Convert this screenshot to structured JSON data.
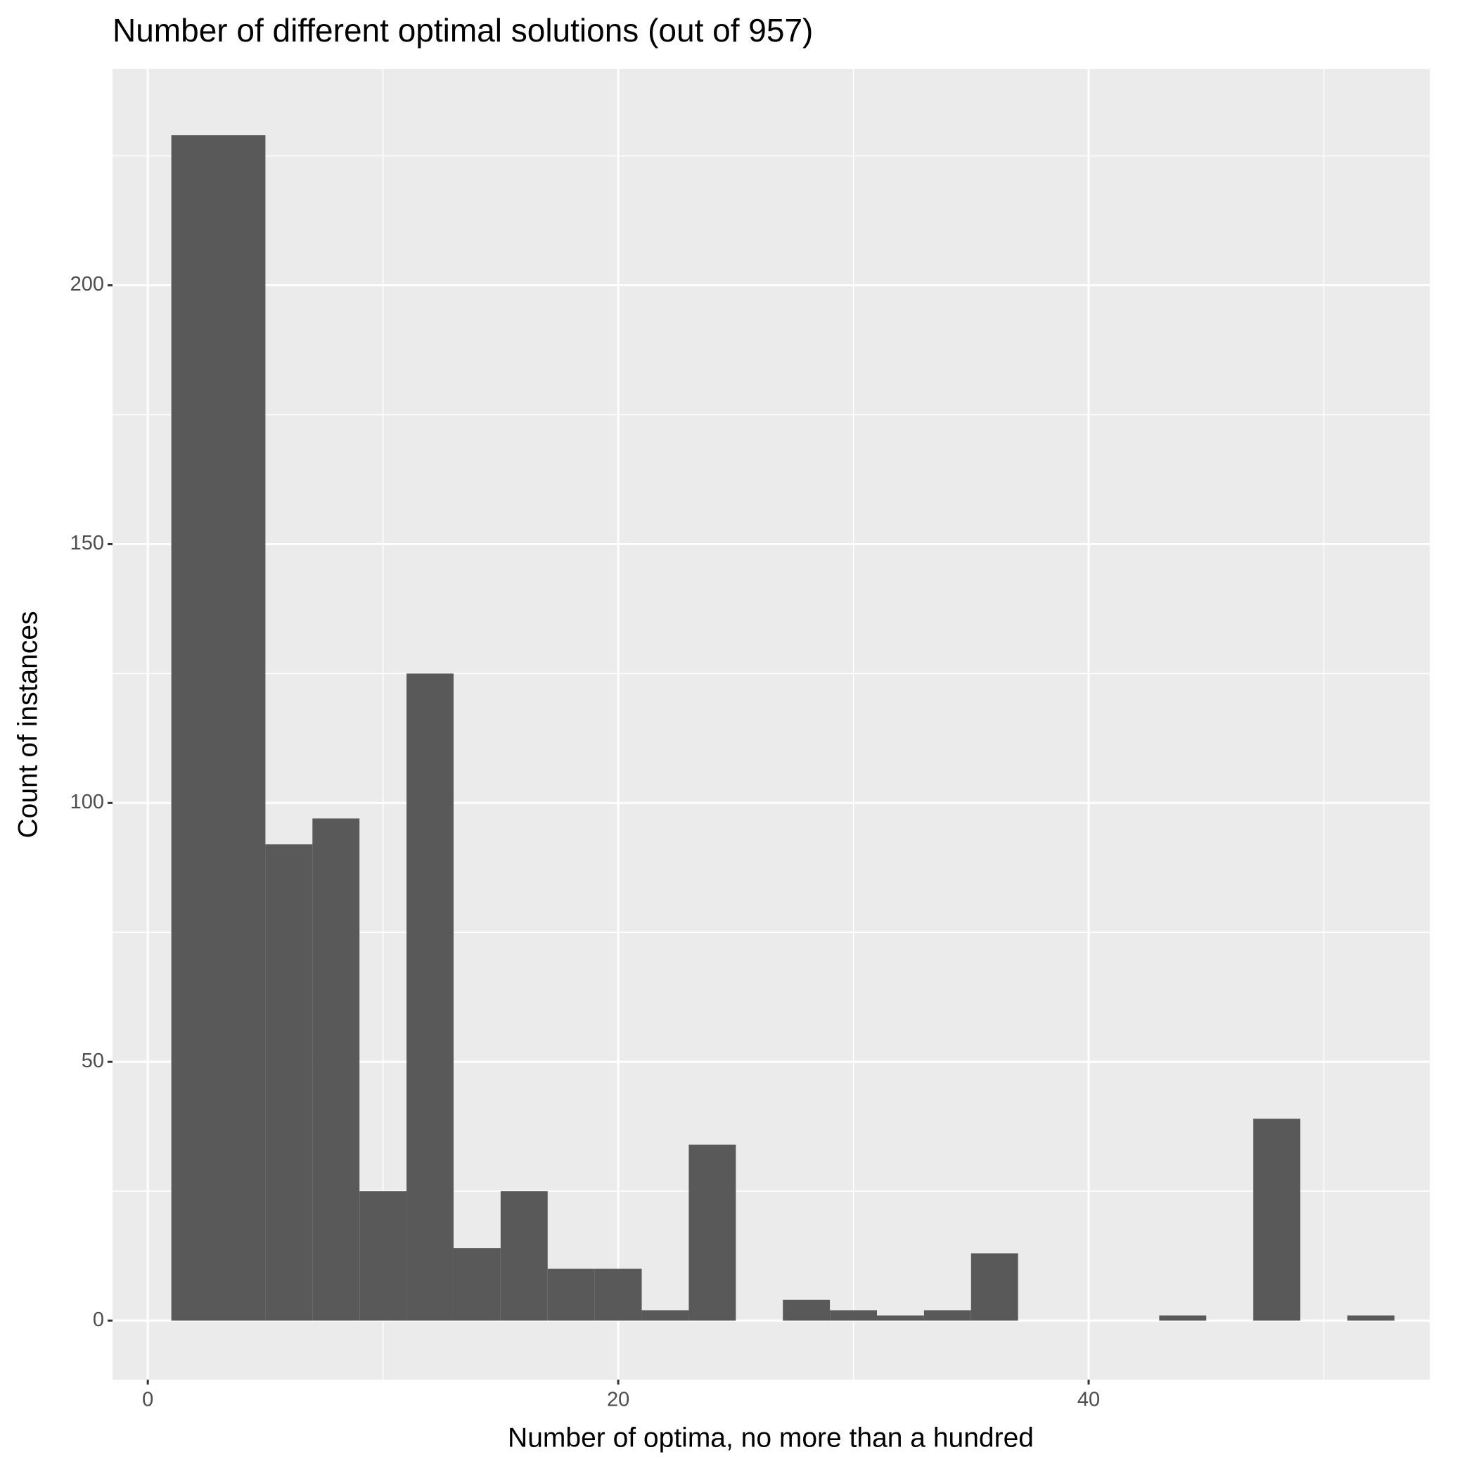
{
  "chart_data": {
    "type": "histogram",
    "title": "Number of different optimal solutions (out of 957)",
    "x_label": "Number of optima, no more than a hundred",
    "y_label": "Count of instances",
    "bins": [
      1,
      3,
      5,
      7,
      9,
      11,
      13,
      15,
      17,
      19,
      21,
      23,
      25,
      27,
      29,
      31,
      33,
      35,
      37,
      39,
      41,
      43,
      45,
      47,
      49,
      51,
      53
    ],
    "values": [
      229,
      229,
      92,
      97,
      25,
      125,
      14,
      25,
      10,
      10,
      2,
      34,
      0,
      4,
      2,
      1,
      2,
      13,
      0,
      0,
      0,
      1,
      0,
      39,
      0,
      1
    ],
    "color": "#595959",
    "xlim": [
      -1.5,
      54.5
    ],
    "ylim": [
      -11.4,
      241.8
    ],
    "xticks": [
      0,
      20,
      40
    ],
    "yticks": [
      0,
      50,
      100,
      150,
      200
    ],
    "x_minor_ticks": [
      10,
      30,
      50
    ],
    "y_minor_ticks": [
      25,
      75,
      125,
      175,
      225
    ],
    "grid": true
  }
}
